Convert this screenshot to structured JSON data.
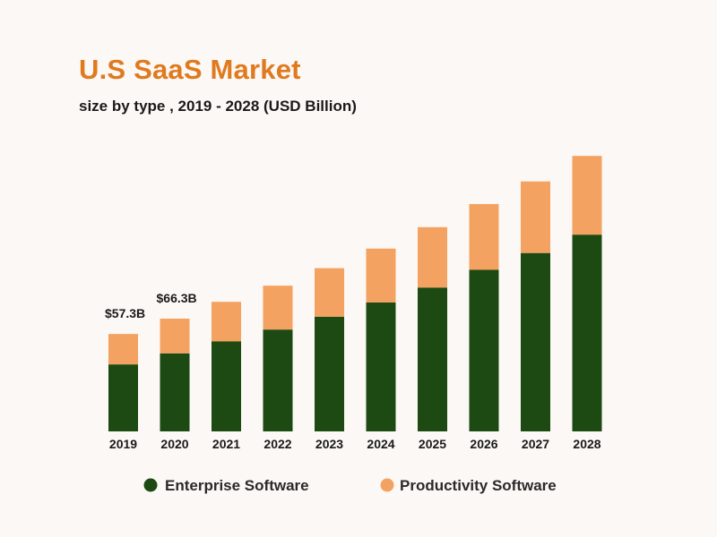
{
  "chart_data": {
    "type": "bar",
    "stacked": true,
    "title": "U.S SaaS Market",
    "subtitle": "size by type , 2019 - 2028 (USD Billion)",
    "categories": [
      "2019",
      "2020",
      "2021",
      "2022",
      "2023",
      "2024",
      "2025",
      "2026",
      "2027",
      "2028"
    ],
    "series": [
      {
        "name": "Enterprise Software",
        "color": "#1c4a12",
        "values": [
          39.4,
          45.9,
          52.9,
          59.9,
          67.4,
          75.8,
          84.6,
          95.0,
          104.9,
          115.7
        ]
      },
      {
        "name": "Productivity Software",
        "color": "#f4a261",
        "values": [
          17.9,
          20.4,
          23.3,
          25.8,
          28.6,
          31.7,
          35.5,
          38.7,
          42.1,
          46.3
        ]
      }
    ],
    "data_labels": [
      {
        "category": "2019",
        "text": "$57.3B"
      },
      {
        "category": "2020",
        "text": "$66.3B"
      }
    ],
    "ylim": [
      0,
      162
    ],
    "grid": false,
    "legend_position": "bottom"
  }
}
